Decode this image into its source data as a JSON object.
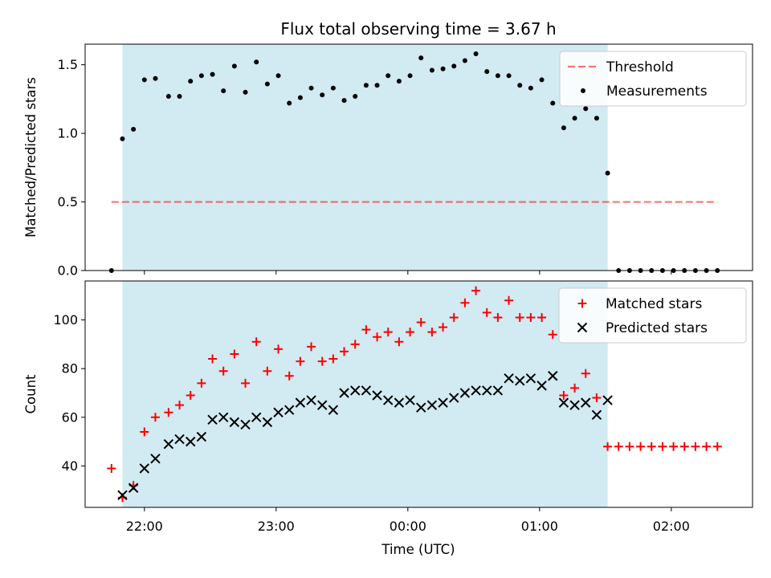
{
  "figure": {
    "title": "Flux total observing time = 3.67 h",
    "xlabel": "Time (UTC)",
    "x_ticks": [
      "22:00",
      "23:00",
      "00:00",
      "01:00",
      "02:00"
    ]
  },
  "colors": {
    "shade": "#add8e6",
    "threshold": "#ff0000",
    "matched": "#ff0000",
    "predicted": "#000000",
    "measurements": "#000000"
  },
  "chart_data": [
    {
      "type": "scatter",
      "ylabel": "Matched/Predicted stars",
      "ylim": [
        0,
        1.65
      ],
      "xlim": [
        "21:33",
        "02:37"
      ],
      "y_ticks": [
        0.0,
        0.5,
        1.0,
        1.5
      ],
      "y_tick_labels": [
        "0.0",
        "0.5",
        "1.0",
        "1.5"
      ],
      "shaded_span": [
        "21:50",
        "01:31"
      ],
      "threshold": {
        "name": "Threshold",
        "value": 0.5,
        "x_range": [
          "21:45",
          "02:21"
        ]
      },
      "legend": "top-right",
      "series": [
        {
          "name": "Measurements",
          "x": [
            "21:45",
            "21:50",
            "21:55",
            "22:00",
            "22:05",
            "22:11",
            "22:16",
            "22:21",
            "22:26",
            "22:31",
            "22:36",
            "22:41",
            "22:46",
            "22:51",
            "22:56",
            "23:01",
            "23:06",
            "23:11",
            "23:16",
            "23:21",
            "23:26",
            "23:31",
            "23:36",
            "23:41",
            "23:46",
            "23:51",
            "23:56",
            "00:01",
            "00:06",
            "00:11",
            "00:16",
            "00:21",
            "00:26",
            "00:31",
            "00:36",
            "00:41",
            "00:46",
            "00:51",
            "00:56",
            "01:01",
            "01:06",
            "01:11",
            "01:16",
            "01:21",
            "01:26",
            "01:31",
            "01:36",
            "01:41",
            "01:46",
            "01:51",
            "01:56",
            "02:01",
            "02:06",
            "02:11",
            "02:16",
            "02:21"
          ],
          "y": [
            0.0,
            0.96,
            1.03,
            1.39,
            1.4,
            1.27,
            1.27,
            1.38,
            1.42,
            1.43,
            1.31,
            1.49,
            1.3,
            1.52,
            1.36,
            1.42,
            1.22,
            1.26,
            1.33,
            1.28,
            1.33,
            1.24,
            1.27,
            1.35,
            1.35,
            1.42,
            1.38,
            1.42,
            1.55,
            1.46,
            1.47,
            1.49,
            1.53,
            1.58,
            1.45,
            1.42,
            1.42,
            1.35,
            1.33,
            1.39,
            1.22,
            1.04,
            1.11,
            1.18,
            1.11,
            0.71,
            0.0,
            0.0,
            0.0,
            0.0,
            0.0,
            0.0,
            0.0,
            0.0,
            0.0,
            0.0
          ]
        }
      ]
    },
    {
      "type": "scatter",
      "ylabel": "Count",
      "ylim": [
        23,
        116
      ],
      "xlim": [
        "21:33",
        "02:37"
      ],
      "y_ticks": [
        40,
        60,
        80,
        100
      ],
      "y_tick_labels": [
        "40",
        "60",
        "80",
        "100"
      ],
      "shaded_span": [
        "21:50",
        "01:31"
      ],
      "legend": "top-right",
      "series": [
        {
          "name": "Matched stars",
          "x": [
            "21:45",
            "21:50",
            "21:55",
            "22:00",
            "22:05",
            "22:11",
            "22:16",
            "22:21",
            "22:26",
            "22:31",
            "22:36",
            "22:41",
            "22:46",
            "22:51",
            "22:56",
            "23:01",
            "23:06",
            "23:11",
            "23:16",
            "23:21",
            "23:26",
            "23:31",
            "23:36",
            "23:41",
            "23:46",
            "23:51",
            "23:56",
            "00:01",
            "00:06",
            "00:11",
            "00:16",
            "00:21",
            "00:26",
            "00:31",
            "00:36",
            "00:41",
            "00:46",
            "00:51",
            "00:56",
            "01:01",
            "01:06",
            "01:11",
            "01:16",
            "01:21",
            "01:26",
            "01:31",
            "01:36",
            "01:41",
            "01:46",
            "01:51",
            "01:56",
            "02:01",
            "02:06",
            "02:11",
            "02:16",
            "02:21"
          ],
          "y": [
            39,
            27,
            32,
            54,
            60,
            62,
            65,
            69,
            74,
            84,
            79,
            86,
            74,
            91,
            79,
            88,
            77,
            83,
            89,
            83,
            84,
            87,
            90,
            96,
            93,
            95,
            91,
            95,
            99,
            95,
            97,
            101,
            107,
            112,
            103,
            101,
            108,
            101,
            101,
            101,
            94,
            69,
            72,
            78,
            68,
            48,
            48,
            48,
            48,
            48,
            48,
            48,
            48,
            48,
            48,
            48
          ]
        },
        {
          "name": "Predicted stars",
          "x": [
            "21:50",
            "21:55",
            "22:00",
            "22:05",
            "22:11",
            "22:16",
            "22:21",
            "22:26",
            "22:31",
            "22:36",
            "22:41",
            "22:46",
            "22:51",
            "22:56",
            "23:01",
            "23:06",
            "23:11",
            "23:16",
            "23:21",
            "23:26",
            "23:31",
            "23:36",
            "23:41",
            "23:46",
            "23:51",
            "23:56",
            "00:01",
            "00:06",
            "00:11",
            "00:16",
            "00:21",
            "00:26",
            "00:31",
            "00:36",
            "00:41",
            "00:46",
            "00:51",
            "00:56",
            "01:01",
            "01:06",
            "01:11",
            "01:16",
            "01:21",
            "01:26",
            "01:31"
          ],
          "y": [
            28,
            31,
            39,
            43,
            49,
            51,
            50,
            52,
            59,
            60,
            58,
            57,
            60,
            58,
            62,
            63,
            66,
            67,
            65,
            63,
            70,
            71,
            71,
            69,
            67,
            66,
            67,
            64,
            65,
            66,
            68,
            70,
            71,
            71,
            71,
            76,
            75,
            76,
            73,
            77,
            66,
            65,
            66,
            61,
            67
          ]
        }
      ]
    }
  ]
}
